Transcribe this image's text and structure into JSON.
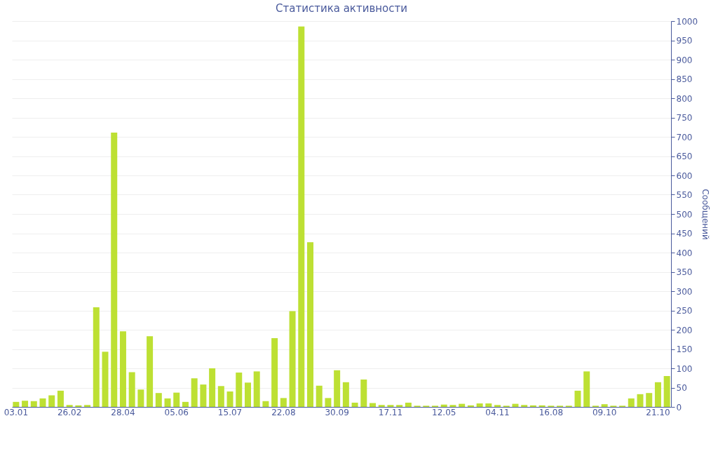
{
  "chart_data": {
    "type": "bar",
    "title": "Статистика активности",
    "ylabel": "Сообщений",
    "categories": [
      "03.01",
      null,
      null,
      null,
      null,
      null,
      "26.02",
      null,
      null,
      null,
      null,
      null,
      "28.04",
      null,
      null,
      null,
      null,
      null,
      "05.06",
      null,
      null,
      null,
      null,
      null,
      "15.07",
      null,
      null,
      null,
      null,
      null,
      "22.08",
      null,
      null,
      null,
      null,
      null,
      "30.09",
      null,
      null,
      null,
      null,
      null,
      "17.11",
      null,
      null,
      null,
      null,
      null,
      "12.05",
      null,
      null,
      null,
      null,
      null,
      "04.11",
      null,
      null,
      null,
      null,
      null,
      "16.08",
      null,
      null,
      null,
      null,
      null,
      "09.10",
      null,
      null,
      null,
      null,
      null,
      "21.10",
      null
    ],
    "values": [
      13,
      16,
      15,
      22,
      30,
      42,
      5,
      4,
      5,
      258,
      143,
      711,
      196,
      90,
      45,
      183,
      36,
      22,
      37,
      13,
      74,
      58,
      100,
      54,
      40,
      89,
      63,
      92,
      15,
      178,
      23,
      248,
      986,
      427,
      55,
      23,
      95,
      64,
      11,
      71,
      10,
      5,
      5,
      5,
      11,
      3,
      3,
      3,
      6,
      5,
      8,
      4,
      9,
      9,
      5,
      3,
      8,
      5,
      4,
      4,
      3,
      3,
      3,
      42,
      92,
      3,
      7,
      3,
      3,
      22,
      33,
      36,
      64,
      80
    ],
    "color": "#bde033",
    "ylim": [
      0,
      1000
    ],
    "yticks": [
      0,
      50,
      100,
      150,
      200,
      250,
      300,
      350,
      400,
      450,
      500,
      550,
      600,
      650,
      700,
      750,
      800,
      850,
      900,
      950,
      1000
    ],
    "grid": "y"
  }
}
